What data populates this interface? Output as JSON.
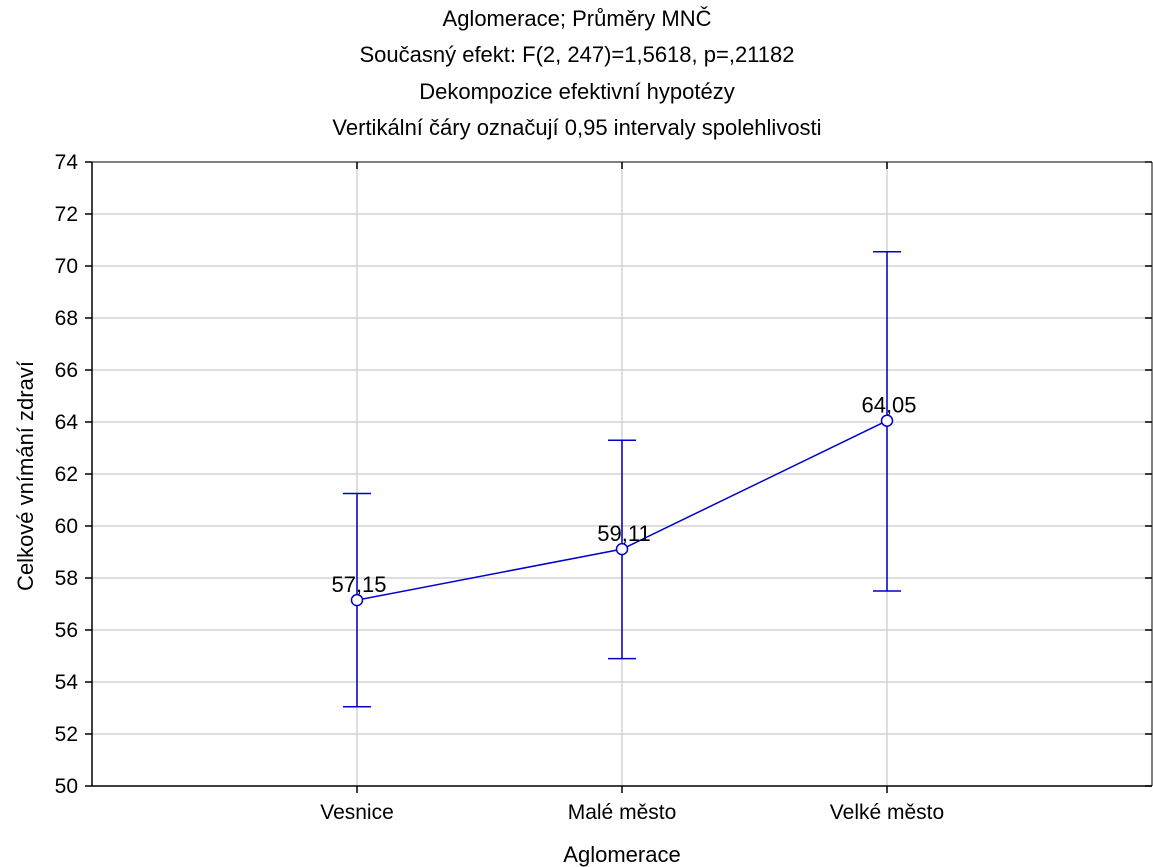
{
  "chart_data": {
    "type": "line",
    "title_lines": [
      "Aglomerace; Průměry MNČ",
      "Současný efekt: F(2, 247)=1,5618, p=,21182",
      "Dekompozice efektivní hypotézy",
      "Vertikální čáry označují 0,95 intervaly spolehlivosti"
    ],
    "xlabel": "Aglomerace",
    "ylabel": "Celkové vnímání zdraví",
    "categories": [
      "Vesnice",
      "Malé město",
      "Velké město"
    ],
    "values": [
      57.15,
      59.11,
      64.05
    ],
    "value_labels": [
      "57,15",
      "59,11",
      "64,05"
    ],
    "ci_lower": [
      53.05,
      54.9,
      57.5
    ],
    "ci_upper": [
      61.25,
      63.3,
      70.55
    ],
    "ylim": [
      50,
      74
    ],
    "yticks": [
      50,
      52,
      54,
      56,
      58,
      60,
      62,
      64,
      66,
      68,
      70,
      72,
      74
    ],
    "grid": true,
    "series_color": "#0000cc",
    "grid_color": "#d3d3d3"
  }
}
